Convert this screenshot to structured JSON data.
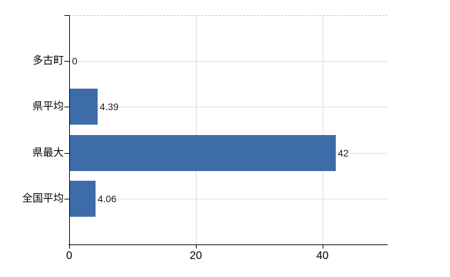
{
  "chart_data": {
    "type": "bar",
    "orientation": "horizontal",
    "title": "",
    "xlabel": "",
    "ylabel": "",
    "categories": [
      "多古町",
      "県平均",
      "県最大",
      "全国平均"
    ],
    "values": [
      0,
      4.39,
      42,
      4.06
    ],
    "value_labels": [
      "0",
      "4.39",
      "42",
      "4.06"
    ],
    "xlim": [
      0,
      50.3
    ],
    "xticks": [
      0,
      20,
      40
    ],
    "xtick_labels": [
      "0",
      "20",
      "40"
    ],
    "grid": true,
    "legend": false,
    "colors": {
      "bar": "#3e6ca9",
      "h_gridline": "#dbe3d8",
      "v_gridline": "#dcdcdc",
      "top_border": "#c8c8c8",
      "axis": "#000000",
      "text": "#000000",
      "value_text": "#1a1a1a",
      "background": "#ffffff"
    }
  }
}
